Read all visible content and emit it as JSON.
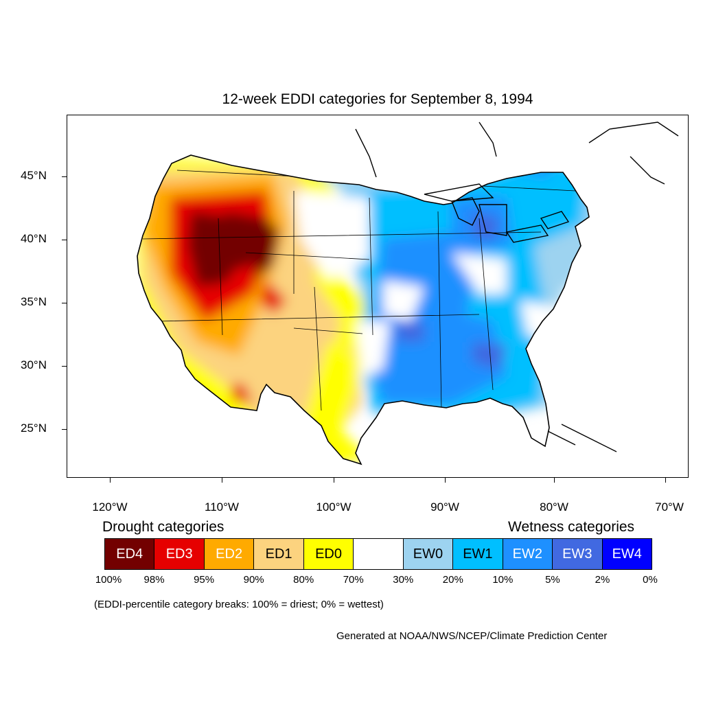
{
  "title": "12-week EDDI categories for September 8, 1994",
  "lat_labels": [
    "45°N",
    "40°N",
    "35°N",
    "30°N",
    "25°N"
  ],
  "lon_labels": [
    "120°W",
    "110°W",
    "100°W",
    "90°W",
    "80°W",
    "70°W"
  ],
  "legend": {
    "drought_heading": "Drought categories",
    "wetness_heading": "Wetness categories",
    "categories": [
      {
        "label": "ED4",
        "color": "#730000",
        "text_color": "#ffffff"
      },
      {
        "label": "ED3",
        "color": "#e60000",
        "text_color": "#ffffff"
      },
      {
        "label": "ED2",
        "color": "#ffaa00",
        "text_color": "#ffffff"
      },
      {
        "label": "ED1",
        "color": "#fcd37f",
        "text_color": "#000000"
      },
      {
        "label": "ED0",
        "color": "#ffff00",
        "text_color": "#000000"
      },
      {
        "label": "",
        "color": "#ffffff",
        "text_color": "#000000"
      },
      {
        "label": "EW0",
        "color": "#9dd3f0",
        "text_color": "#000000"
      },
      {
        "label": "EW1",
        "color": "#00bfff",
        "text_color": "#000000"
      },
      {
        "label": "EW2",
        "color": "#1e90ff",
        "text_color": "#ffffff"
      },
      {
        "label": "EW3",
        "color": "#4169e1",
        "text_color": "#ffffff"
      },
      {
        "label": "EW4",
        "color": "#0000ff",
        "text_color": "#ffffff"
      }
    ],
    "breaks": [
      "100%",
      "98%",
      "95%",
      "90%",
      "80%",
      "70%",
      "30%",
      "20%",
      "10%",
      "5%",
      "2%",
      "0%"
    ]
  },
  "note": "(EDDI-percentile category breaks: 100% = driest; 0% = wettest)",
  "credit": "Generated at NOAA/NWS/NCEP/Climate Prediction Center"
}
